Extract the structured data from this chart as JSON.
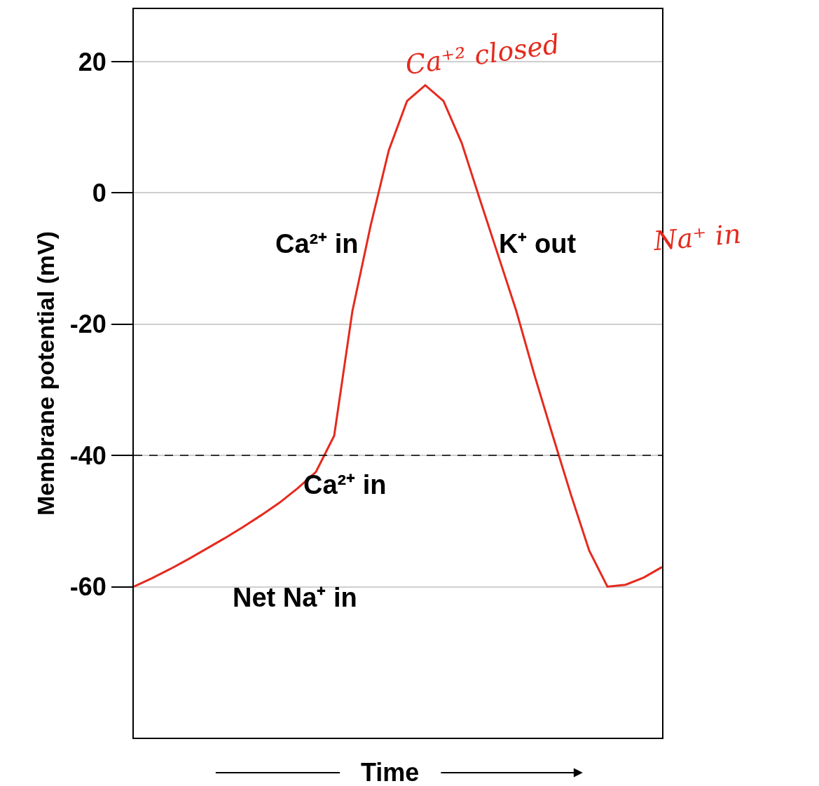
{
  "chart_data": {
    "type": "line",
    "xlabel": "Time",
    "ylabel": "Membrane potential (mV)",
    "categories": [
      null,
      null,
      null,
      null,
      null,
      null,
      null,
      null,
      null,
      null,
      null,
      null,
      null,
      null,
      null,
      null,
      null,
      null,
      null,
      null,
      null,
      null,
      null,
      null,
      null,
      null,
      null,
      null,
      null,
      null
    ],
    "series": [
      {
        "color": "#e52a1e",
        "values": [
          -60,
          -58.7,
          -57.3,
          -55.8,
          -54.2,
          -52.6,
          -50.9,
          -49.1,
          -47.2,
          -45.0,
          -42.5,
          -37,
          -18,
          -5,
          6.5,
          14,
          16.4,
          14,
          7.6,
          -1,
          -9.5,
          -18,
          -27.8,
          -37,
          -46,
          -54.5,
          -60,
          -59.7,
          -58.6,
          -57
        ]
      }
    ],
    "ylim": [
      -83,
      28
    ],
    "yticks": [
      -60,
      -40,
      -20,
      0,
      20
    ],
    "grid": "y",
    "marker": "none",
    "line_style": "solid",
    "ref_lines": [
      {
        "axis": "y",
        "value": -40,
        "color": "#000000",
        "line_style": "dashed"
      }
    ],
    "annotations": [
      "Ca²⁺ in",
      "K⁺ out",
      "Ca²⁺ in",
      "Net Na⁺ in",
      "Ca⁺² closed",
      "Na⁺ in"
    ]
  }
}
